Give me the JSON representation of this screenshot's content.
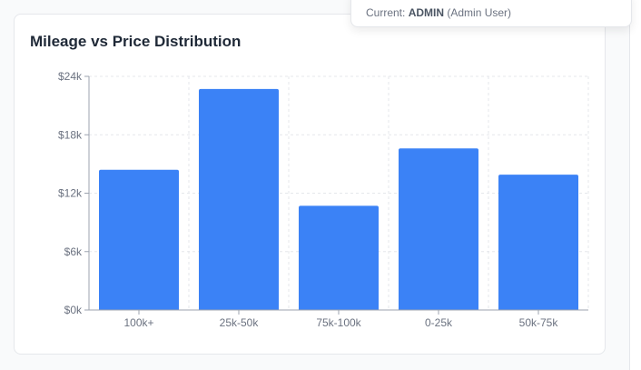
{
  "popover": {
    "prefix": "Current:",
    "role": "ADMIN",
    "user": "(Admin User)"
  },
  "card": {
    "title": "Mileage vs Price Distribution"
  },
  "colors": {
    "bar": "#3b82f6",
    "grid": "#e5e7eb",
    "axis": "#9ca3af"
  },
  "chart_data": {
    "type": "bar",
    "title": "Mileage vs Price Distribution",
    "xlabel": "",
    "ylabel": "",
    "categories": [
      "100k+",
      "25k-50k",
      "75k-100k",
      "0-25k",
      "50k-75k"
    ],
    "values": [
      14400,
      22700,
      10700,
      16600,
      13900
    ],
    "ylim": [
      0,
      24000
    ],
    "yticks": [
      0,
      6000,
      12000,
      18000,
      24000
    ],
    "ytick_labels": [
      "$0k",
      "$6k",
      "$12k",
      "$18k",
      "$24k"
    ],
    "grid": true,
    "legend": "none"
  }
}
